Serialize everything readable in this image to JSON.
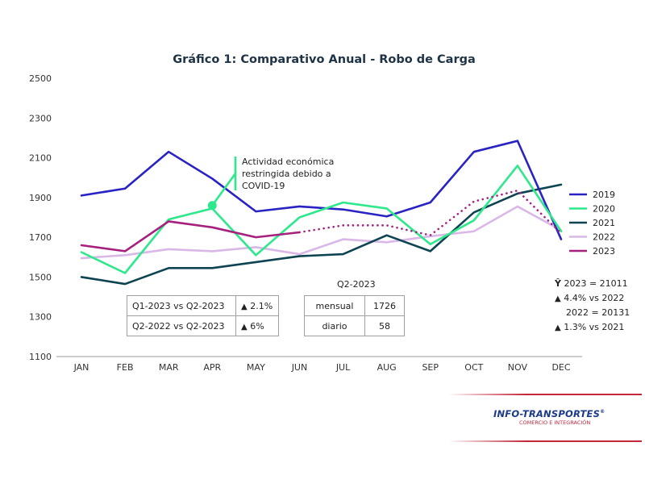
{
  "chart_data": {
    "type": "line",
    "title": "Gráfico 1: Comparativo Anual - Robo de Carga",
    "categories": [
      "JAN",
      "FEB",
      "MAR",
      "APR",
      "MAY",
      "JUN",
      "JUL",
      "AUG",
      "SEP",
      "OCT",
      "NOV",
      "DEC"
    ],
    "yticks": [
      "2500",
      "2300",
      "2100",
      "1900",
      "1700",
      "1500",
      "1300",
      "1100"
    ],
    "ylim": [
      1100,
      2500
    ],
    "grid": false,
    "legend_position": "right",
    "series": [
      {
        "name": "2019",
        "color": "#2a23c4",
        "values": [
          1910,
          1945,
          2130,
          1995,
          1830,
          1855,
          1840,
          1805,
          1875,
          2130,
          2185,
          1690
        ]
      },
      {
        "name": "2020",
        "color": "#2ee88c",
        "values": [
          1625,
          1520,
          1790,
          1845,
          1610,
          1800,
          1875,
          1845,
          1665,
          1785,
          2060,
          1730
        ]
      },
      {
        "name": "2021",
        "color": "#0e4452",
        "values": [
          1500,
          1465,
          1545,
          1545,
          1575,
          1605,
          1615,
          1710,
          1630,
          1825,
          1920,
          1965
        ]
      },
      {
        "name": "2022",
        "color": "#d9b8e8",
        "values": [
          1595,
          1610,
          1640,
          1630,
          1650,
          1615,
          1690,
          1675,
          1705,
          1730,
          1855,
          1735
        ]
      },
      {
        "name": "2023",
        "color": "#a6207e",
        "values": [
          1660,
          1630,
          1780,
          1750,
          1700,
          1725,
          null,
          null,
          null,
          null,
          null,
          null
        ]
      }
    ],
    "projection_2023": {
      "color": "#a6207e",
      "values": [
        null,
        null,
        null,
        null,
        null,
        1725,
        1760,
        1760,
        1710,
        1880,
        1935,
        1720
      ]
    },
    "annotation": {
      "text_lines": [
        "Actividad económica",
        "restringida debido a",
        "COVID-19"
      ],
      "month": "APR",
      "value": 1860,
      "color": "#2ee88c"
    }
  },
  "comparison_table": {
    "rows": [
      {
        "label": "Q1-2023 vs Q2-2023",
        "change": "2.1%"
      },
      {
        "label": "Q2-2022 vs Q2-2023",
        "change": "6%"
      }
    ]
  },
  "q2_table": {
    "title": "Q2-2023",
    "rows": [
      {
        "label": "mensual",
        "value": "1726"
      },
      {
        "label": "diario",
        "value": "58"
      }
    ]
  },
  "summary": {
    "total_2023": "2023 = 21011",
    "vs_2022": "4.4% vs 2022",
    "total_2022": "2022 = 20131",
    "vs_2021": "1.3% vs 2021"
  },
  "logo": {
    "name": "INFO-TRANSPORTES",
    "registered": "®",
    "tagline": "COMERCIO E INTEGRACIÓN"
  }
}
